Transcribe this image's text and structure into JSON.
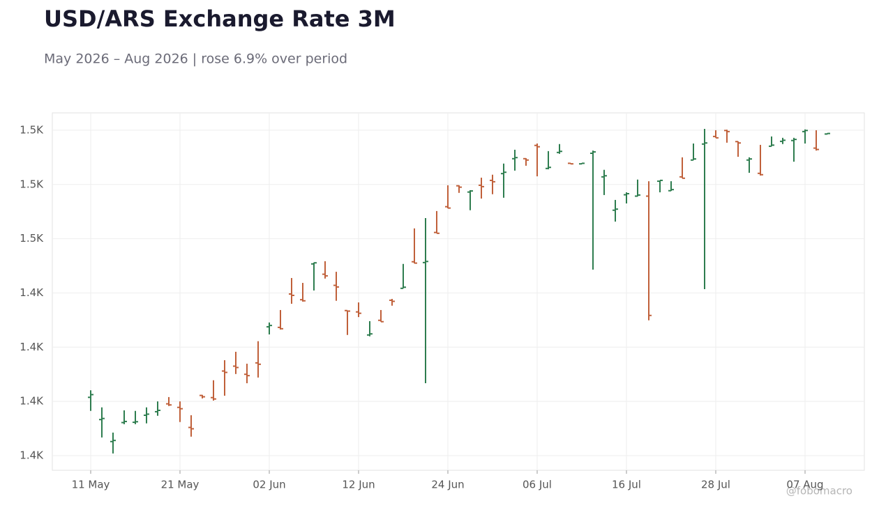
{
  "chart_data": {
    "type": "ohlc",
    "title": "USD/ARS Exchange Rate 3M",
    "subtitle": "May 2026 – Aug 2026 | rose 6.9% over period",
    "watermark": "@fobomacro",
    "categories": [
      "11 May",
      null,
      null,
      null,
      null,
      null,
      null,
      null,
      "21 May",
      null,
      null,
      null,
      null,
      null,
      null,
      null,
      "02 Jun",
      null,
      null,
      null,
      null,
      null,
      null,
      null,
      "12 Jun",
      null,
      null,
      null,
      null,
      null,
      null,
      null,
      "24 Jun",
      null,
      null,
      null,
      null,
      null,
      null,
      null,
      "06 Jul",
      null,
      null,
      null,
      null,
      null,
      null,
      null,
      "16 Jul",
      null,
      null,
      null,
      null,
      null,
      null,
      null,
      "28 Jul",
      null,
      null,
      null,
      null,
      null,
      null,
      null,
      "07 Aug",
      null,
      null
    ],
    "open": [
      1401.5,
      1393.3,
      1385.2,
      1392.2,
      1392.3,
      1394.9,
      1396.2,
      1399.1,
      1397.8,
      1390.4,
      1402.2,
      1401.4,
      1411.2,
      1413,
      1410,
      1414.2,
      1427.5,
      1427.3,
      1439.6,
      1437.5,
      1450.7,
      1446.9,
      1442.8,
      1433.5,
      1433,
      1424.5,
      1429.9,
      1437.3,
      1441.7,
      1451.5,
      1451.2,
      1462.3,
      1471.8,
      1479.5,
      1477.2,
      1479.7,
      1481.5,
      1484,
      1489.5,
      1489.5,
      1494.4,
      1485.9,
      1491.8,
      1487.8,
      1487.6,
      1491.5,
      1482.8,
      1470.5,
      1476.2,
      1475.7,
      1475.7,
      1481.2,
      1477.7,
      1482.8,
      1489,
      1494.9,
      1497.7,
      1499.9,
      1495.8,
      1489,
      1484.1,
      1494.1,
      1495.9,
      1496.2,
      1499.5,
      1493.4,
      1498.6
    ],
    "high": [
      1404.1,
      1397.8,
      1388.5,
      1396.7,
      1396.5,
      1397.8,
      1400,
      1401.6,
      1400,
      1394.9,
      1402.4,
      1407.8,
      1415.2,
      1418.3,
      1413.9,
      1422.2,
      1429.1,
      1433.7,
      1445.5,
      1443.7,
      1451.2,
      1451.7,
      1447.8,
      1433.5,
      1436.5,
      1429.6,
      1433.7,
      1437.8,
      1450.7,
      1463.8,
      1467.6,
      1470.2,
      1479.7,
      1479.7,
      1477.9,
      1482.5,
      1483.6,
      1487.7,
      1492.8,
      1489.7,
      1495.1,
      1492.3,
      1494.9,
      1487.9,
      1487.9,
      1492.5,
      1485.4,
      1474.3,
      1477.1,
      1481.8,
      1481.2,
      1481.5,
      1481.2,
      1490,
      1495.1,
      1500.5,
      1500,
      1500.2,
      1495.9,
      1490,
      1494.6,
      1497.7,
      1497.2,
      1497.2,
      1500.3,
      1500,
      1498.9
    ],
    "low": [
      1396.5,
      1386.7,
      1380.8,
      1391.6,
      1391.6,
      1391.9,
      1394.7,
      1398.3,
      1392.4,
      1387,
      1401.1,
      1400.3,
      1402.1,
      1410.1,
      1406.7,
      1408.8,
      1424.7,
      1426.5,
      1436,
      1436.8,
      1440.9,
      1445.3,
      1437.1,
      1424.5,
      1431.1,
      1424,
      1429.4,
      1435.3,
      1441.7,
      1450.9,
      1406.7,
      1462,
      1471.2,
      1476.9,
      1470.5,
      1474.8,
      1476.4,
      1475.1,
      1485.1,
      1486.9,
      1483,
      1485.6,
      1491.3,
      1487.5,
      1487.5,
      1448.6,
      1476.1,
      1466.3,
      1473,
      1475.6,
      1429.9,
      1477.1,
      1477.6,
      1482.3,
      1489,
      1441.4,
      1497.2,
      1495.4,
      1490.2,
      1484.3,
      1483.3,
      1494.1,
      1494.9,
      1488.4,
      1495.1,
      1492.5,
      1498.5
    ],
    "close": [
      1402.5,
      1393.7,
      1385.6,
      1392.6,
      1392.5,
      1395.3,
      1396.7,
      1398.7,
      1397.3,
      1389.9,
      1401.7,
      1400.9,
      1410.7,
      1412.5,
      1409.5,
      1413.7,
      1428,
      1426.8,
      1439.1,
      1437.1,
      1451.1,
      1446.3,
      1442.2,
      1433.3,
      1432.5,
      1424.9,
      1429.4,
      1436.9,
      1442.1,
      1451,
      1451.6,
      1462,
      1471.3,
      1479,
      1477.6,
      1479.2,
      1481,
      1484.5,
      1489.9,
      1489,
      1493.9,
      1486.3,
      1492.2,
      1487.6,
      1487.8,
      1492,
      1483.2,
      1470.9,
      1476.6,
      1476.1,
      1431.7,
      1481.5,
      1478.1,
      1482.3,
      1489.4,
      1495.3,
      1497.2,
      1499.5,
      1495.3,
      1489.4,
      1483.6,
      1494.5,
      1496.3,
      1496.6,
      1499.9,
      1492.9,
      1498.8
    ],
    "up_color": "#2e7d4f",
    "down_color": "#c0603a",
    "ylim": [
      1374.6,
      1506.4
    ],
    "yticks": [
      {
        "value": 1380,
        "label": "1.4K"
      },
      {
        "value": 1400,
        "label": "1.4K"
      },
      {
        "value": 1420,
        "label": "1.4K"
      },
      {
        "value": 1440,
        "label": "1.4K"
      },
      {
        "value": 1460,
        "label": "1.5K"
      },
      {
        "value": 1480,
        "label": "1.5K"
      },
      {
        "value": 1500,
        "label": "1.5K"
      }
    ],
    "grid": true
  }
}
